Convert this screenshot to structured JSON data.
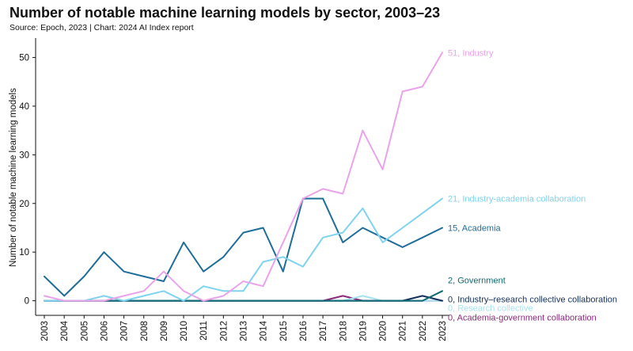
{
  "chart_data": {
    "type": "line",
    "title": "Number of notable machine learning models by sector, 2003–23",
    "subtitle": "Source: Epoch, 2023 | Chart: 2024 AI Index report",
    "ylabel": "Number of notable machine learning models",
    "xlabel": "",
    "ylim": [
      -3,
      54
    ],
    "yticks": [
      0,
      10,
      20,
      30,
      40,
      50
    ],
    "grid": false,
    "legend": "end-labels",
    "categories": [
      "2003",
      "2004",
      "2005",
      "2006",
      "2007",
      "2008",
      "2009",
      "2010",
      "2011",
      "2012",
      "2013",
      "2014",
      "2015",
      "2016",
      "2017",
      "2018",
      "2019",
      "2020",
      "2021",
      "2022",
      "2023"
    ],
    "series": [
      {
        "name": "Industry",
        "end_label": "51, Industry",
        "color": "#e9a3ea",
        "values": [
          1,
          0,
          0,
          0,
          1,
          2,
          6,
          2,
          0,
          1,
          4,
          3,
          12,
          21,
          23,
          22,
          35,
          27,
          43,
          44,
          51
        ]
      },
      {
        "name": "Industry-academia collaboration",
        "end_label": "21, Industry-academia collaboration",
        "color": "#7fd3ef",
        "values": [
          0,
          0,
          0,
          1,
          0,
          1,
          2,
          0,
          3,
          2,
          2,
          8,
          9,
          7,
          13,
          14,
          19,
          12,
          15,
          18,
          21
        ]
      },
      {
        "name": "Academia",
        "end_label": "15, Academia",
        "color": "#1f6e9a",
        "values": [
          5,
          1,
          5,
          10,
          6,
          5,
          4,
          12,
          6,
          9,
          14,
          15,
          6,
          21,
          21,
          12,
          15,
          13,
          11,
          13,
          15
        ]
      },
      {
        "name": "Government",
        "end_label": "2, Government",
        "color": "#0e6a74",
        "values": [
          0,
          0,
          0,
          0,
          0,
          0,
          0,
          0,
          0,
          0,
          0,
          0,
          0,
          0,
          0,
          0,
          0,
          0,
          0,
          0,
          2
        ]
      },
      {
        "name": "Industry–research collective collaboration",
        "end_label": "0, Industry–research collective collaboration",
        "color": "#14305c",
        "values": [
          0,
          0,
          0,
          0,
          0,
          0,
          0,
          0,
          0,
          0,
          0,
          0,
          0,
          0,
          0,
          0,
          0,
          0,
          0,
          1,
          0
        ]
      },
      {
        "name": "Research collective",
        "end_label": "0, Research collective",
        "color": "#a8e2f2",
        "values": [
          0,
          0,
          0,
          0,
          0,
          0,
          0,
          0,
          0,
          0,
          0,
          0,
          0,
          0,
          0,
          0,
          1,
          0,
          0,
          0,
          0
        ]
      },
      {
        "name": "Academia-government collaboration",
        "end_label": "0, Academia-government collaboration",
        "color": "#8c2a7c",
        "values": [
          0,
          0,
          0,
          0,
          0,
          0,
          0,
          0,
          0,
          0,
          0,
          0,
          0,
          0,
          0,
          1,
          0,
          0,
          0,
          0,
          0
        ]
      }
    ]
  }
}
